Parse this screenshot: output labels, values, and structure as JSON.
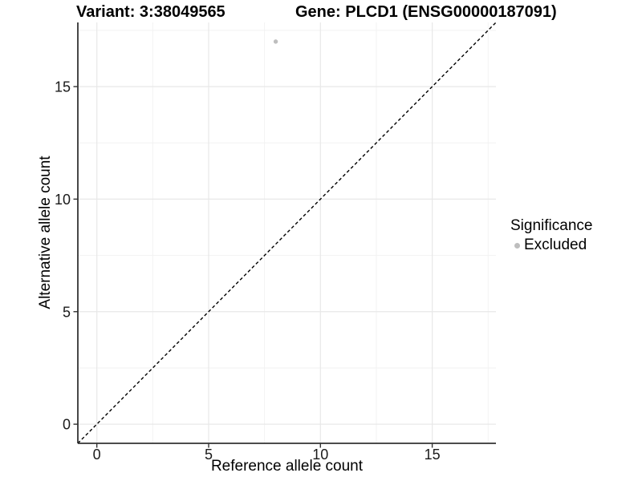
{
  "chart_data": {
    "type": "scatter",
    "title_left": "Variant: 3:38049565",
    "title_right": "Gene: PLCD1 (ENSG00000187091)",
    "xlabel": "Reference allele count",
    "ylabel": "Alternative allele count",
    "xlim": [
      -0.85,
      17.85
    ],
    "ylim": [
      -0.85,
      17.85
    ],
    "x_ticks": [
      0,
      5,
      10,
      15
    ],
    "y_ticks": [
      0,
      5,
      10,
      15
    ],
    "x_minor_ticks": [
      2.5,
      7.5,
      12.5,
      17.5
    ],
    "y_minor_ticks": [
      2.5,
      7.5,
      12.5,
      17.5
    ],
    "grid": "major+minor",
    "reference_line": {
      "slope": 1,
      "intercept": 0,
      "style": "dashed"
    },
    "series": [
      {
        "name": "Excluded",
        "color": "#bebebe",
        "points": [
          {
            "x": 8,
            "y": 17
          }
        ]
      }
    ],
    "legend": {
      "title": "Significance",
      "position": "right",
      "items": [
        {
          "label": "Excluded",
          "color": "#bebebe"
        }
      ]
    },
    "colors": {
      "background": "#ffffff",
      "grid_major": "#e8e8e8",
      "grid_minor": "#f2f2f2",
      "axis": "#333333",
      "tick_label": "#1a1a1a",
      "reference_line": "#000000",
      "point": "#bebebe"
    }
  }
}
